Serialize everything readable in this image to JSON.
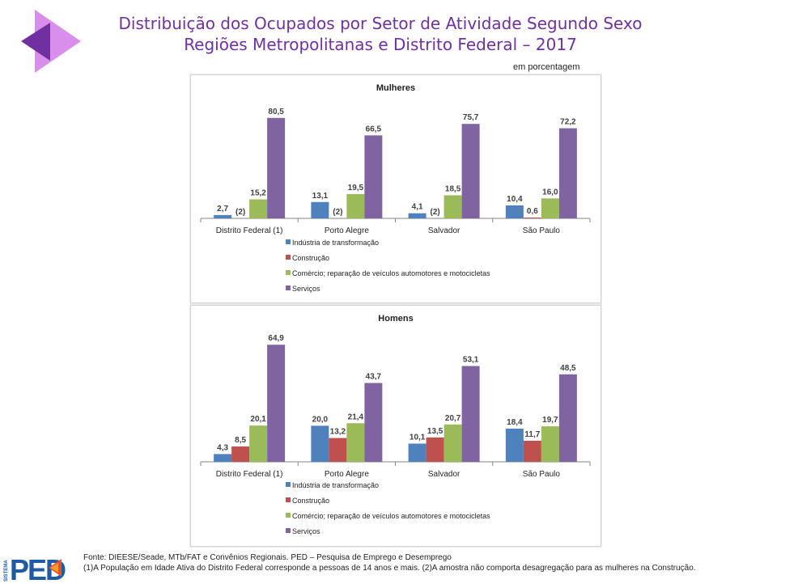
{
  "header": {
    "title_line1": "Distribuição dos Ocupados por Setor de Atividade Segundo Sexo",
    "title_line2": "Regiões Metropolitanas e Distrito Federal – 2017",
    "unit_note": "em porcentagem",
    "logo_icon": "diamond-triangles-logo",
    "colors": {
      "title": "#7030A0",
      "logo_light": "#D98EEB",
      "logo_dark": "#7030A0"
    }
  },
  "chart_data": [
    {
      "type": "bar",
      "title": "Mulheres",
      "categories": [
        "Distrito Federal (1)",
        "Porto Alegre",
        "Salvador",
        "São Paulo"
      ],
      "series": [
        {
          "name": "Indústria de transformação",
          "color": "#4F81BD",
          "values": [
            2.7,
            13.1,
            4.1,
            10.4
          ],
          "labels": [
            "2,7",
            "13,1",
            "4,1",
            "10,4"
          ]
        },
        {
          "name": "Construção",
          "color": "#C0504D",
          "values": [
            null,
            null,
            null,
            0.6
          ],
          "labels": [
            "(2)",
            "(2)",
            "(2)",
            "0,6"
          ]
        },
        {
          "name": "Comércio; reparação de veículos automotores e motocicletas",
          "color": "#9BBB59",
          "values": [
            15.2,
            19.5,
            18.5,
            16.0
          ],
          "labels": [
            "15,2",
            "19,5",
            "18,5",
            "16,0"
          ]
        },
        {
          "name": "Serviços",
          "color": "#8064A2",
          "values": [
            80.5,
            66.5,
            75.7,
            72.2
          ],
          "labels": [
            "80,5",
            "66,5",
            "75,7",
            "72,2"
          ]
        }
      ],
      "xlabel": "",
      "ylabel": "",
      "ylim": [
        0,
        81
      ],
      "grid": false,
      "legend": "bottom"
    },
    {
      "type": "bar",
      "title": "Homens",
      "categories": [
        "Distrito Federal (1)",
        "Porto Alegre",
        "Salvador",
        "São Paulo"
      ],
      "series": [
        {
          "name": "Indústria de transformação",
          "color": "#4F81BD",
          "values": [
            4.3,
            20.0,
            10.1,
            18.4
          ],
          "labels": [
            "4,3",
            "20,0",
            "10,1",
            "18,4"
          ]
        },
        {
          "name": "Construção",
          "color": "#C0504D",
          "values": [
            8.5,
            13.2,
            13.5,
            11.7
          ],
          "labels": [
            "8,5",
            "13,2",
            "13,5",
            "11,7"
          ]
        },
        {
          "name": "Comércio; reparação de veículos automotores e motocicletas",
          "color": "#9BBB59",
          "values": [
            20.1,
            21.4,
            20.7,
            19.7
          ],
          "labels": [
            "20,1",
            "21,4",
            "20,7",
            "19,7"
          ]
        },
        {
          "name": "Serviços",
          "color": "#8064A2",
          "values": [
            64.9,
            43.7,
            53.1,
            48.5
          ],
          "labels": [
            "64,9",
            "43,7",
            "53,1",
            "48,5"
          ]
        }
      ],
      "xlabel": "",
      "ylabel": "",
      "ylim": [
        0,
        65
      ],
      "grid": false,
      "legend": "bottom"
    }
  ],
  "footer": {
    "source": "Fonte: DIEESE/Seade, MTb/FAT e Convênios Regionais. PED – Pesquisa de Emprego e Desemprego",
    "notes": "(1)A População em Idade Ativa do Distrito Federal corresponde a pessoas de 14 anos e mais. (2)A amostra não comporta desagregação para as mulheres na Construção.",
    "logo_text": "PED",
    "logo_side_text": "SISTEMA",
    "colors": {
      "logo_blue": "#1F5AA6",
      "logo_orange": "#E8541E"
    }
  }
}
